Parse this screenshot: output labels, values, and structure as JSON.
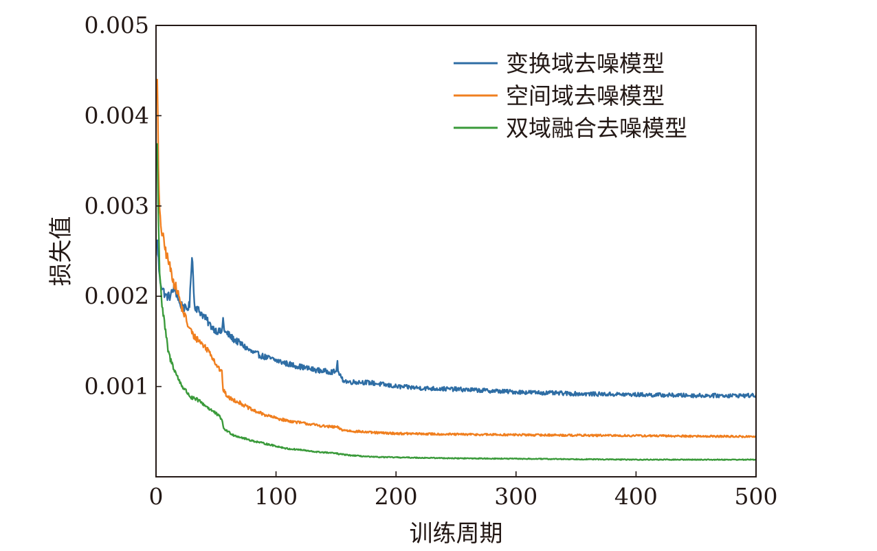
{
  "chart_data": {
    "type": "line",
    "title": "",
    "xlabel": "训练周期",
    "ylabel": "损失值",
    "xlim": [
      0,
      500
    ],
    "ylim": [
      0.0,
      0.005
    ],
    "x_ticks": [
      0,
      100,
      200,
      300,
      400,
      500
    ],
    "y_ticks": [
      0.001,
      0.002,
      0.003,
      0.004,
      0.005
    ],
    "x_tick_labels": [
      "0",
      "100",
      "200",
      "300",
      "400",
      "500"
    ],
    "y_tick_labels": [
      "0.001",
      "0.002",
      "0.003",
      "0.004",
      "0.005"
    ],
    "grid": false,
    "legend_position": "top-right",
    "x": [
      1,
      2,
      3,
      5,
      8,
      10,
      12,
      15,
      18,
      20,
      22,
      25,
      28,
      29,
      30,
      31,
      32,
      35,
      40,
      45,
      50,
      55,
      56,
      57,
      60,
      65,
      70,
      80,
      90,
      100,
      110,
      120,
      130,
      140,
      150,
      151,
      152,
      155,
      160,
      170,
      180,
      200,
      225,
      250,
      300,
      350,
      400,
      450,
      500
    ],
    "series": [
      {
        "name": "变换域去噪模型",
        "color": "#2e6da4",
        "values": [
          0.0026,
          0.0024,
          0.0022,
          0.0021,
          0.002,
          0.002,
          0.002,
          0.0021,
          0.002,
          0.0019,
          0.0019,
          0.00185,
          0.0019,
          0.0022,
          0.0025,
          0.0022,
          0.0019,
          0.00185,
          0.00178,
          0.00168,
          0.00162,
          0.0016,
          0.00178,
          0.0016,
          0.00158,
          0.00152,
          0.00148,
          0.00138,
          0.00133,
          0.00129,
          0.00125,
          0.00122,
          0.00119,
          0.00117,
          0.00116,
          0.00128,
          0.00115,
          0.00108,
          0.00105,
          0.00105,
          0.00104,
          0.001,
          0.00098,
          0.00097,
          0.00094,
          0.00092,
          0.00091,
          0.0009,
          0.0009
        ]
      },
      {
        "name": "空间域去噪模型",
        "color": "#f07f1f",
        "values": [
          0.0045,
          0.0034,
          0.0029,
          0.0027,
          0.0025,
          0.0024,
          0.0023,
          0.00215,
          0.00205,
          0.00195,
          0.00185,
          0.00175,
          0.00162,
          0.00165,
          0.00158,
          0.00157,
          0.00155,
          0.00152,
          0.00145,
          0.00138,
          0.00125,
          0.00115,
          0.00095,
          0.00094,
          0.00088,
          0.00085,
          0.00082,
          0.00074,
          0.00069,
          0.00065,
          0.00062,
          0.0006,
          0.00058,
          0.00056,
          0.00055,
          0.00055,
          0.00054,
          0.00052,
          0.00051,
          0.0005,
          0.00049,
          0.00048,
          0.000475,
          0.00047,
          0.000465,
          0.00046,
          0.000455,
          0.00045,
          0.000445
        ]
      },
      {
        "name": "双域融合去噪模型",
        "color": "#3a9a3a",
        "values": [
          0.0037,
          0.0028,
          0.0023,
          0.0019,
          0.0016,
          0.0014,
          0.0013,
          0.0012,
          0.0011,
          0.00105,
          0.001,
          0.00095,
          0.0009,
          0.00088,
          0.00087,
          0.00087,
          0.00086,
          0.00085,
          0.0008,
          0.00075,
          0.0007,
          0.00064,
          0.00054,
          0.00053,
          0.0005,
          0.00046,
          0.00044,
          0.0004,
          0.00037,
          0.00034,
          0.00031,
          0.0003,
          0.00028,
          0.00027,
          0.00026,
          0.00026,
          0.00025,
          0.00025,
          0.00024,
          0.00023,
          0.00022,
          0.000215,
          0.00021,
          0.000205,
          0.0002,
          0.000195,
          0.00019,
          0.00019,
          0.00019
        ]
      }
    ]
  }
}
